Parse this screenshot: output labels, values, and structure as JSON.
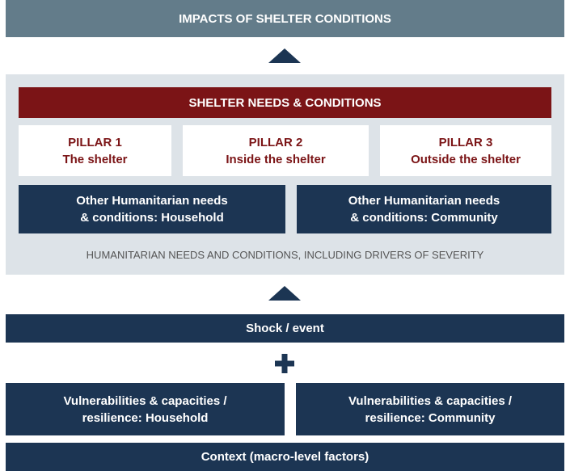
{
  "top": {
    "title": "IMPACTS OF SHELTER CONDITIONS"
  },
  "panel": {
    "header": "SHELTER NEEDS & CONDITIONS",
    "pillars": [
      {
        "title": "PILLAR 1",
        "subtitle": "The shelter"
      },
      {
        "title": "PILLAR 2",
        "subtitle": "Inside the shelter"
      },
      {
        "title": "PILLAR 3",
        "subtitle": "Outside the shelter"
      }
    ],
    "other_needs": [
      {
        "lines": [
          "Other Humanitarian needs",
          "& conditions: Household"
        ]
      },
      {
        "lines": [
          "Other Humanitarian needs",
          "& conditions: Community"
        ]
      }
    ],
    "footer": "HUMANITARIAN NEEDS AND CONDITIONS, INCLUDING DRIVERS OF SEVERITY"
  },
  "shock": "Shock / event",
  "vulnerabilities": [
    {
      "lines": [
        "Vulnerabilities & capacities /",
        "resilience: Household"
      ]
    },
    {
      "lines": [
        "Vulnerabilities & capacities /",
        "resilience: Community"
      ]
    }
  ],
  "context": "Context (macro-level factors)"
}
